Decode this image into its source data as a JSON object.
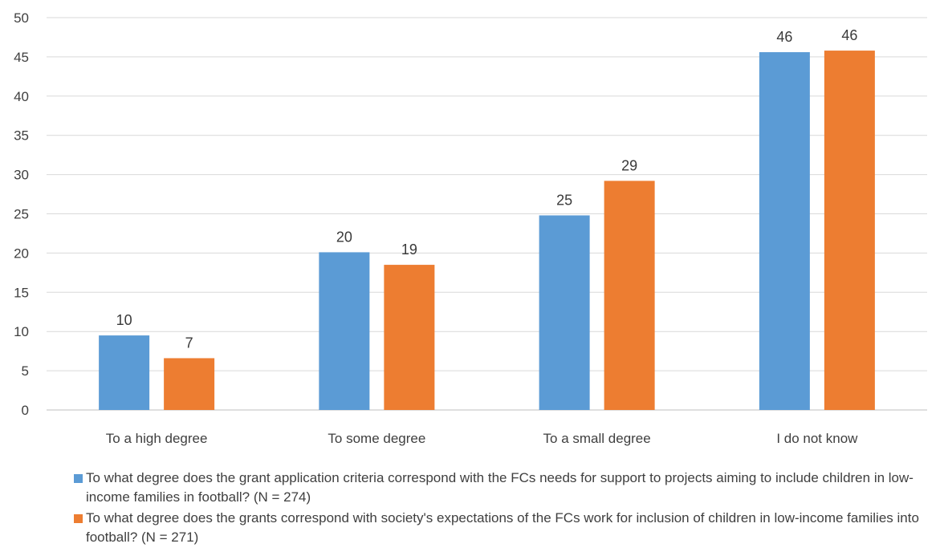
{
  "chart_data": {
    "type": "bar",
    "title": "",
    "xlabel": "",
    "ylabel": "",
    "categories": [
      "To a high degree",
      "To some degree",
      "To a small degree",
      "I do not know"
    ],
    "ylim": [
      0,
      50
    ],
    "yticks": [
      0,
      5,
      10,
      15,
      20,
      25,
      30,
      35,
      40,
      45,
      50
    ],
    "grid": true,
    "legend": "bottom",
    "series": [
      {
        "name": "To what degree does the grant application criteria correspond with the FCs needs for support to projects aiming to include children in low-income families in football? (N = 274)",
        "color": "#5b9bd5",
        "values": [
          9.5,
          20.1,
          24.8,
          45.6
        ],
        "labels": [
          "10",
          "20",
          "25",
          "46"
        ]
      },
      {
        "name": "To what degree does the grants correspond with society's expectations of the FCs work for inclusion of children in low-income families into football? (N = 271)",
        "color": "#ed7d31",
        "values": [
          6.6,
          18.5,
          29.2,
          45.8
        ],
        "labels": [
          "7",
          "19",
          "29",
          "46"
        ]
      }
    ]
  }
}
